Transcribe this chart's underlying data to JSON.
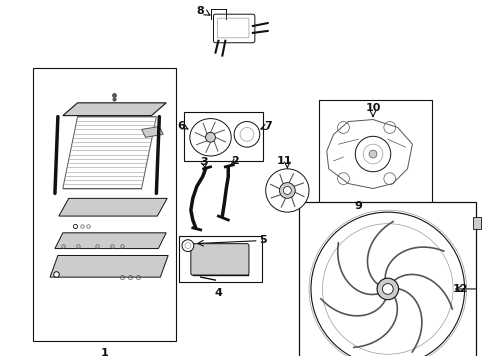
{
  "bg_color": "#ffffff",
  "line_color": "#111111",
  "light_gray": "#cccccc",
  "mid_gray": "#999999",
  "dark_gray": "#555555",
  "figsize": [
    4.9,
    3.6
  ],
  "dpi": 100
}
